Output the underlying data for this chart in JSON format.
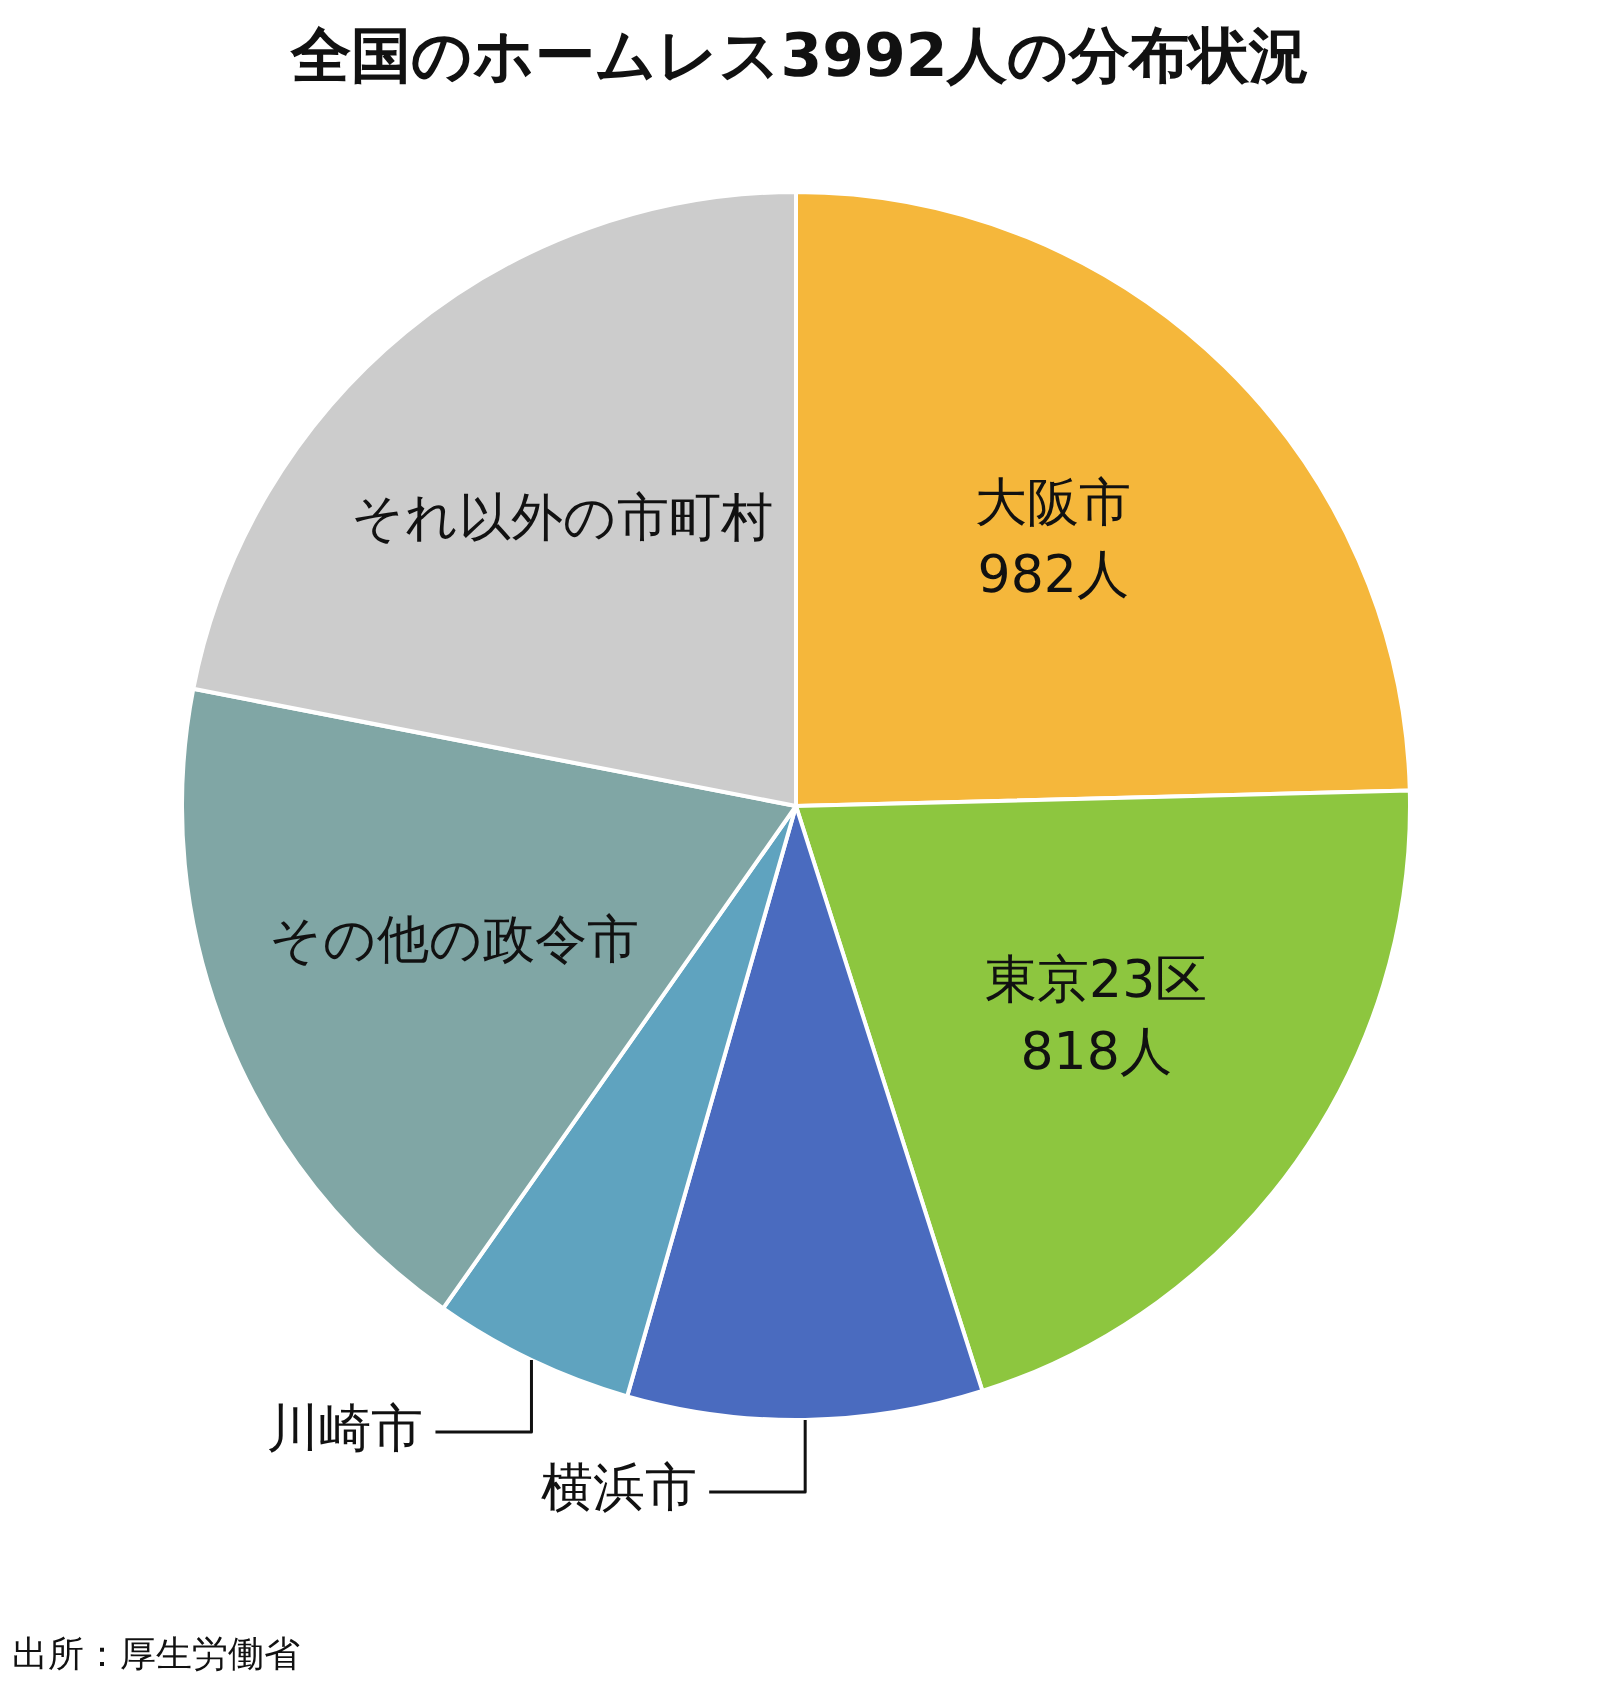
{
  "chart_data": {
    "type": "pie",
    "title": "全国のホームレス3992人の分布状況",
    "categories": [
      "大阪市",
      "東京23区",
      "横浜市",
      "川崎市",
      "その他の政令市",
      "それ以外の市町村"
    ],
    "values": [
      982,
      818,
      373,
      212,
      731,
      876
    ],
    "value_labels": [
      "982人",
      "818人",
      null,
      null,
      null,
      null
    ],
    "colors": [
      "#f5b73b",
      "#8dc63f",
      "#4a6bbf",
      "#5fa3bf",
      "#80a6a5",
      "#cccccc"
    ],
    "legend": false,
    "annotations": [
      "出所：厚生労働省"
    ]
  }
}
